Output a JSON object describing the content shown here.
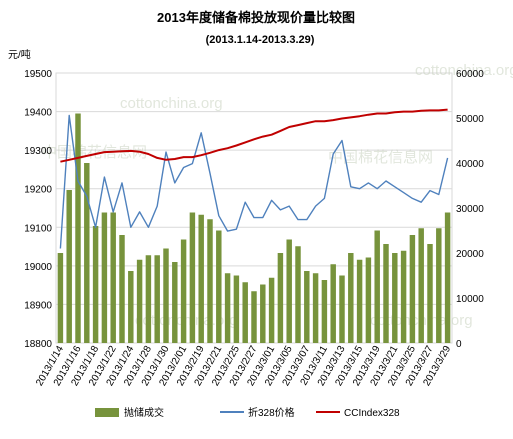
{
  "chart_data": {
    "type": "bar+line",
    "title": "2013年度储备棉投放现价量比较图",
    "subtitle": "(2013.1.14-2013.3.29)",
    "ylabel_left": "元/吨",
    "ylim_left": [
      18800,
      19500
    ],
    "yticks_left": [
      "18800",
      "18900",
      "19000",
      "19100",
      "19200",
      "19300",
      "19400",
      "19500"
    ],
    "ylim_right": [
      0,
      60000
    ],
    "yticks_right": [
      "0",
      "10000",
      "20000",
      "30000",
      "40000",
      "50000",
      "60000"
    ],
    "x_tick_labels": [
      "2013/1/14",
      "2013/1/16",
      "2013/1/18",
      "2013/1/22",
      "2013/1/24",
      "2013/1/28",
      "2013/1/30",
      "2013/2/01",
      "2013/2/19",
      "2013/2/21",
      "2013/2/25",
      "2013/2/27",
      "2013/3/01",
      "2013/3/05",
      "2013/3/07",
      "2013/3/11",
      "2013/3/13",
      "2013/3/15",
      "2013/3/19",
      "2013/3/21",
      "2013/3/25",
      "2013/3/27",
      "2013/3/29"
    ],
    "n_days": 45,
    "series": [
      {
        "name": "抛储成交",
        "axis": "right",
        "type": "bar",
        "color": "#77933c",
        "values": [
          20000,
          34000,
          51000,
          40000,
          26000,
          29000,
          29000,
          24000,
          16000,
          18500,
          19500,
          19500,
          21000,
          18000,
          23000,
          29000,
          28500,
          27500,
          25000,
          15500,
          15000,
          13500,
          11500,
          13000,
          14500,
          20000,
          23000,
          21500,
          16000,
          15500,
          14000,
          17500,
          15000,
          20000,
          18500,
          19000,
          25000,
          22000,
          20000,
          20500,
          24000,
          25500,
          22000,
          25500,
          29000
        ]
      },
      {
        "name": "折328价格",
        "axis": "left",
        "type": "line",
        "color": "#4f81bd",
        "values": [
          19045,
          19390,
          19220,
          19180,
          19100,
          19230,
          19140,
          19215,
          19100,
          19140,
          19100,
          19155,
          19295,
          19215,
          19255,
          19265,
          19345,
          19240,
          19130,
          19090,
          19095,
          19165,
          19125,
          19125,
          19170,
          19145,
          19155,
          19120,
          19120,
          19155,
          19175,
          19290,
          19325,
          19205,
          19200,
          19215,
          19200,
          19220,
          19205,
          19190,
          19175,
          19165,
          19195,
          19185,
          19280
        ]
      },
      {
        "name": "CCIndex328",
        "axis": "left",
        "type": "line",
        "color": "#c00000",
        "values": [
          19270,
          19275,
          19280,
          19285,
          19290,
          19295,
          19296,
          19297,
          19298,
          19296,
          19290,
          19280,
          19275,
          19277,
          19282,
          19282,
          19287,
          19293,
          19300,
          19305,
          19312,
          19320,
          19328,
          19335,
          19340,
          19350,
          19360,
          19365,
          19370,
          19375,
          19375,
          19378,
          19382,
          19385,
          19388,
          19392,
          19395,
          19395,
          19398,
          19400,
          19400,
          19402,
          19403,
          19403,
          19405
        ]
      }
    ],
    "watermarks": [
      "中国棉花信息网",
      "cottonchina.org"
    ],
    "legend_position": "bottom"
  }
}
